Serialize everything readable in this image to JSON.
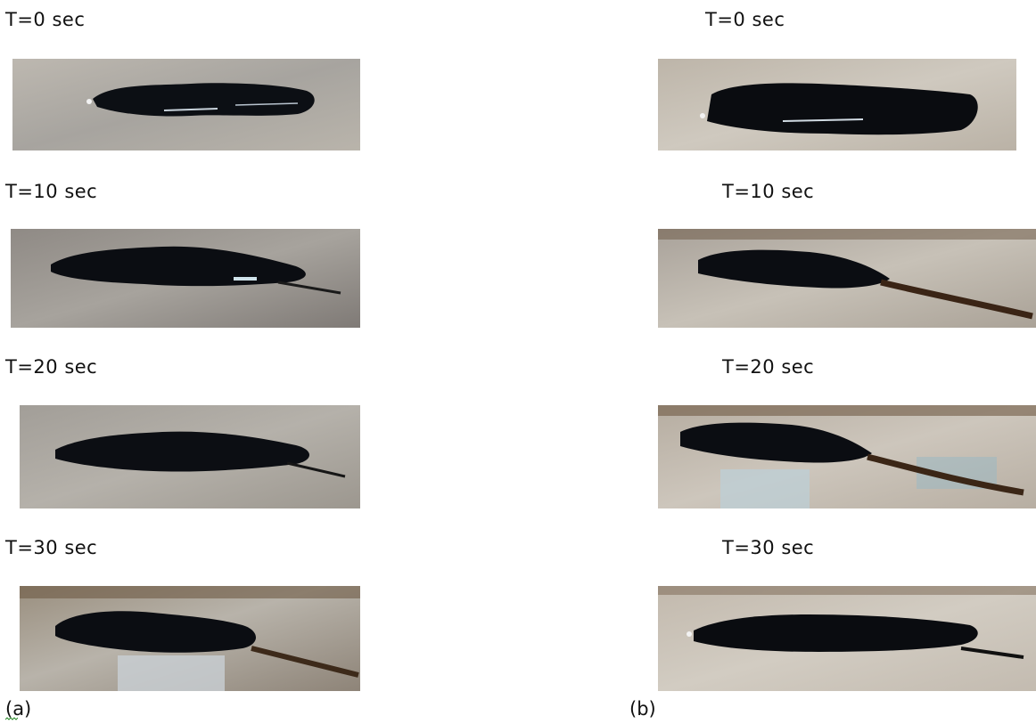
{
  "figure": {
    "column_a": {
      "caption": "(a)",
      "frames": [
        {
          "label": "T=0 sec"
        },
        {
          "label": "T=10 sec"
        },
        {
          "label": "T=20 sec"
        },
        {
          "label": "T=30 sec"
        }
      ]
    },
    "column_b": {
      "caption": "(b)",
      "frames": [
        {
          "label": "T=0 sec"
        },
        {
          "label": "T=10 sec"
        },
        {
          "label": "T=20 sec"
        },
        {
          "label": "T=30 sec"
        }
      ]
    }
  }
}
